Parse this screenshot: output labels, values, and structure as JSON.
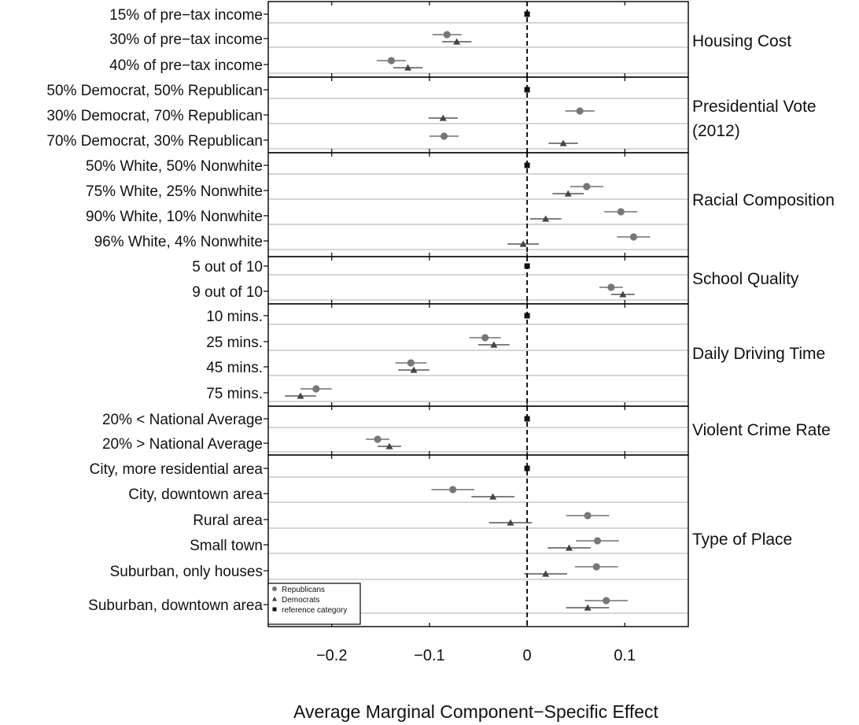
{
  "chart_data": {
    "type": "scatter",
    "title": "",
    "xlabel": "Average Marginal Component−Specific Effect",
    "ylabel": "",
    "xlim": [
      -0.265,
      0.165
    ],
    "xticks": [
      -0.2,
      -0.1,
      0,
      0.1
    ],
    "xtick_labels": [
      "−0.2",
      "−0.1",
      "0",
      "0.1"
    ],
    "reference_line": 0,
    "grid": "horizontal lines at each level",
    "legend": {
      "placement": "bottom-left",
      "entries": [
        {
          "name": "Republicans",
          "marker": "circle",
          "color": "#777777"
        },
        {
          "name": "Democrats",
          "marker": "triangle",
          "color": "#444444"
        },
        {
          "name": "reference category",
          "marker": "square",
          "color": "#111111"
        }
      ]
    },
    "groups": [
      {
        "name": "Housing Cost",
        "levels": [
          {
            "label": "15% of pre−tax income",
            "reference": true
          },
          {
            "label": "30% of pre−tax income",
            "rep": [
              -0.082,
              -0.097,
              -0.067
            ],
            "dem": [
              -0.072,
              -0.087,
              -0.057
            ]
          },
          {
            "label": "40% of pre−tax income",
            "rep": [
              -0.139,
              -0.154,
              -0.124
            ],
            "dem": [
              -0.122,
              -0.137,
              -0.107
            ]
          }
        ]
      },
      {
        "name": "Presidential Vote (2012)",
        "name_lines": [
          "Presidential Vote",
          "(2012)"
        ],
        "levels": [
          {
            "label": "50% Democrat, 50% Republican",
            "reference": true
          },
          {
            "label": "30% Democrat, 70% Republican",
            "rep": [
              0.054,
              0.039,
              0.069
            ],
            "dem": [
              -0.086,
              -0.101,
              -0.071
            ]
          },
          {
            "label": "70% Democrat, 30% Republican",
            "rep": [
              -0.085,
              -0.1,
              -0.07
            ],
            "dem": [
              0.037,
              0.022,
              0.052
            ]
          }
        ]
      },
      {
        "name": "Racial Composition",
        "levels": [
          {
            "label": "50% White, 50% Nonwhite",
            "reference": true
          },
          {
            "label": "75% White, 25% Nonwhite",
            "rep": [
              0.061,
              0.044,
              0.078
            ],
            "dem": [
              0.042,
              0.026,
              0.058
            ]
          },
          {
            "label": "90% White, 10% Nonwhite",
            "rep": [
              0.096,
              0.079,
              0.113
            ],
            "dem": [
              0.019,
              0.003,
              0.035
            ]
          },
          {
            "label": "96% White, 4% Nonwhite",
            "rep": [
              0.109,
              0.092,
              0.126
            ],
            "dem": [
              -0.004,
              -0.02,
              0.012
            ]
          }
        ]
      },
      {
        "name": "School Quality",
        "levels": [
          {
            "label": "5 out of 10",
            "reference": true
          },
          {
            "label": "9 out of 10",
            "rep": [
              0.086,
              0.074,
              0.098
            ],
            "dem": [
              0.098,
              0.086,
              0.11
            ]
          }
        ]
      },
      {
        "name": "Daily Driving Time",
        "levels": [
          {
            "label": "10 mins.",
            "reference": true
          },
          {
            "label": "25 mins.",
            "rep": [
              -0.043,
              -0.059,
              -0.027
            ],
            "dem": [
              -0.034,
              -0.05,
              -0.018
            ]
          },
          {
            "label": "45 mins.",
            "rep": [
              -0.119,
              -0.135,
              -0.103
            ],
            "dem": [
              -0.116,
              -0.132,
              -0.1
            ]
          },
          {
            "label": "75 mins.",
            "rep": [
              -0.216,
              -0.232,
              -0.2
            ],
            "dem": [
              -0.232,
              -0.248,
              -0.216
            ]
          }
        ]
      },
      {
        "name": "Violent Crime Rate",
        "levels": [
          {
            "label": "20% < National Average",
            "reference": true
          },
          {
            "label": "20% > National Average",
            "rep": [
              -0.153,
              -0.165,
              -0.141
            ],
            "dem": [
              -0.141,
              -0.153,
              -0.129
            ]
          }
        ]
      },
      {
        "name": "Type of Place",
        "levels": [
          {
            "label": "City, more residential area",
            "reference": true
          },
          {
            "label": "City, downtown area",
            "rep": [
              -0.076,
              -0.098,
              -0.054
            ],
            "dem": [
              -0.035,
              -0.057,
              -0.013
            ]
          },
          {
            "label": "Rural area",
            "rep": [
              0.062,
              0.04,
              0.084
            ],
            "dem": [
              -0.017,
              -0.039,
              0.005
            ]
          },
          {
            "label": "Small town",
            "rep": [
              0.072,
              0.05,
              0.094
            ],
            "dem": [
              0.043,
              0.021,
              0.065
            ]
          },
          {
            "label": "Suburban, only houses",
            "rep": [
              0.071,
              0.049,
              0.093
            ],
            "dem": [
              0.019,
              -0.003,
              0.041
            ]
          },
          {
            "label": "Suburban, downtown area",
            "rep": [
              0.081,
              0.059,
              0.103
            ],
            "dem": [
              0.062,
              0.04,
              0.084
            ]
          }
        ]
      }
    ]
  }
}
